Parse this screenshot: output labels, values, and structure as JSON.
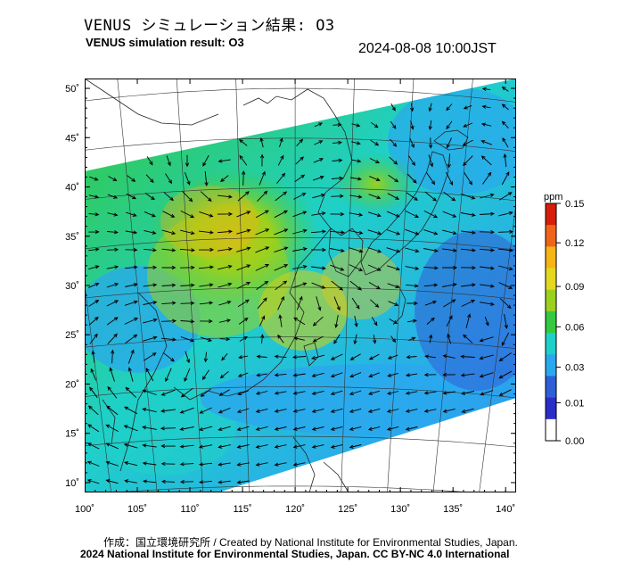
{
  "header": {
    "title_jp": "VENUS シミュレーション結果: O3",
    "title_en": "VENUS simulation result: O3",
    "timestamp": "2024-08-08 10:00JST"
  },
  "map": {
    "lon_ticks": [
      "100˚",
      "105˚",
      "110˚",
      "115˚",
      "120˚",
      "125˚",
      "130˚",
      "135˚",
      "140˚"
    ],
    "lat_ticks": [
      "50˚",
      "45˚",
      "40˚",
      "35˚",
      "30˚",
      "25˚",
      "20˚",
      "15˚",
      "10˚"
    ],
    "lon_range": [
      100,
      141
    ],
    "lat_range": [
      9,
      51
    ],
    "field_colors": {
      "low": "#2f5fd6",
      "low_mid": "#2aa8ee",
      "mid": "#1fd0c8",
      "mid_high": "#35c940",
      "high": "#9bd11e",
      "very_high": "#f2b514"
    }
  },
  "colorbar": {
    "unit": "ppm",
    "ticks": [
      "0.15",
      "0.12",
      "0.09",
      "0.06",
      "0.03",
      "0.01",
      "0.00"
    ],
    "colors": [
      "#d81e0a",
      "#f0641a",
      "#f6b416",
      "#e4d81e",
      "#9bd11e",
      "#35c940",
      "#1fd0c8",
      "#2aa8ee",
      "#2f5fd6",
      "#2b2dc8",
      "#ffffff"
    ]
  },
  "footer": {
    "credit_line1": "作成：国立環境研究所 / Created by National Institute for Environmental Studies, Japan.",
    "credit_line2": "2024 National Institute for Environmental Studies, Japan. CC BY-NC 4.0 International"
  }
}
